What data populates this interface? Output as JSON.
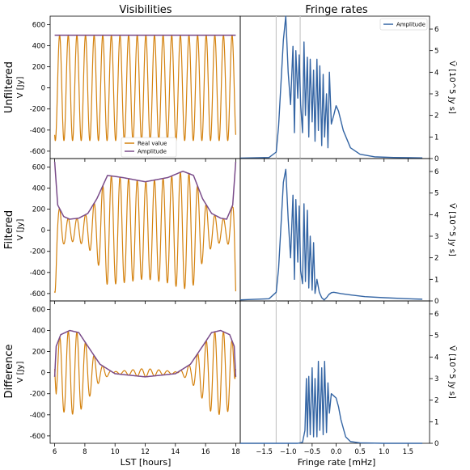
{
  "figure": {
    "col_titles": [
      "Visibilities",
      "Fringe rates"
    ],
    "row_labels": [
      "Unfiltered",
      "Filtered",
      "Difference"
    ],
    "colors": {
      "real": "#d4820f",
      "amplitude": "#7a4c8a",
      "fringe": "#3465a4",
      "vline": "#c8c8c8"
    }
  },
  "chart_data": [
    {
      "type": "line",
      "panel": "visibilities",
      "title": "Visibilities",
      "xlabel": "LST [hours]",
      "ylabel": "V [Jy]",
      "xlim": [
        5.7,
        18.3
      ],
      "ylim": [
        -670,
        680
      ],
      "xticks": [
        6,
        8,
        10,
        12,
        14,
        16,
        18
      ],
      "yticks": [
        -600,
        -400,
        -200,
        0,
        200,
        400,
        600
      ],
      "legend": {
        "entries": [
          "Real value",
          "Amplitude"
        ],
        "location": "lower center (top row)"
      },
      "rows": [
        {
          "name": "Unfiltered",
          "amplitude": {
            "x": [
              6,
              18
            ],
            "y": [
              500,
              500
            ]
          },
          "real": {
            "amp": 500,
            "cycles_per_hour": 1.75
          }
        },
        {
          "name": "Filtered",
          "amplitude": {
            "x": [
              6,
              6.2,
              6.6,
              7.0,
              7.6,
              8.2,
              8.8,
              9.5,
              10.5,
              12,
              13.5,
              14.5,
              15.2,
              15.8,
              16.4,
              17.0,
              17.4,
              17.8,
              18
            ],
            "y": [
              650,
              240,
              130,
              105,
              115,
              160,
              300,
              520,
              500,
              460,
              500,
              560,
              520,
              300,
              160,
              115,
              105,
              240,
              650
            ]
          },
          "real": {
            "cycles_per_hour": 1.75
          }
        },
        {
          "name": "Difference",
          "amplitude": {
            "x": [
              6,
              6.1,
              6.4,
              7.0,
              7.6,
              8.2,
              9.0,
              10.0,
              12.0,
              14.0,
              15.0,
              15.8,
              16.4,
              17.0,
              17.6,
              17.9,
              18
            ],
            "y": [
              -40,
              250,
              360,
              400,
              380,
              250,
              80,
              -10,
              -40,
              -10,
              80,
              250,
              380,
              400,
              360,
              250,
              -40
            ]
          },
          "real": {
            "cycles_per_hour": 1.75
          }
        }
      ]
    },
    {
      "type": "line",
      "panel": "fringe_rates",
      "title": "Fringe rates",
      "xlabel": "Fringe rate [mHz]",
      "ylabel": "Ṽ [10^5 Jy s]",
      "xlim": [
        -2.0,
        1.95
      ],
      "ylim": [
        0,
        6.6
      ],
      "xticks": [
        -1.5,
        -1.0,
        -0.5,
        0.0,
        0.5,
        1.0,
        1.5
      ],
      "xtick_labels": [
        "−1.5",
        "−1.0",
        "−0.5",
        "0.0",
        "0.5",
        "1.0",
        "1.5"
      ],
      "yticks": [
        0,
        1,
        2,
        3,
        4,
        5,
        6
      ],
      "vlines": [
        -1.25,
        -0.75
      ],
      "legend": {
        "entries": [
          "Amplitude"
        ],
        "location": "upper right (top row)"
      },
      "rows": [
        {
          "name": "Unfiltered",
          "x": [
            -2.0,
            -1.4,
            -1.25,
            -1.2,
            -1.15,
            -1.1,
            -1.05,
            -1.0,
            -0.95,
            -0.9,
            -0.87,
            -0.84,
            -0.8,
            -0.77,
            -0.74,
            -0.7,
            -0.67,
            -0.64,
            -0.6,
            -0.57,
            -0.54,
            -0.5,
            -0.47,
            -0.44,
            -0.4,
            -0.37,
            -0.34,
            -0.3,
            -0.27,
            -0.24,
            -0.2,
            -0.17,
            -0.14,
            -0.1,
            -0.05,
            0.0,
            0.05,
            0.15,
            0.3,
            0.5,
            0.8,
            1.2,
            1.8
          ],
          "y": [
            0.02,
            0.05,
            0.3,
            1.5,
            3.5,
            5.5,
            6.6,
            4.0,
            2.5,
            5.2,
            1.2,
            5.0,
            2.8,
            4.8,
            2.5,
            1.2,
            5.4,
            2.0,
            4.7,
            1.0,
            4.6,
            1.7,
            4.1,
            0.8,
            4.6,
            1.3,
            4.3,
            0.6,
            3.9,
            1.0,
            3.0,
            0.5,
            4.0,
            1.6,
            2.0,
            2.45,
            2.2,
            1.3,
            0.5,
            0.2,
            0.08,
            0.05,
            0.03
          ]
        },
        {
          "name": "Filtered",
          "x": [
            -2.0,
            -1.4,
            -1.25,
            -1.2,
            -1.15,
            -1.1,
            -1.05,
            -1.0,
            -0.95,
            -0.9,
            -0.87,
            -0.84,
            -0.8,
            -0.77,
            -0.74,
            -0.7,
            -0.67,
            -0.64,
            -0.6,
            -0.57,
            -0.54,
            -0.5,
            -0.47,
            -0.44,
            -0.4,
            -0.35,
            -0.3,
            -0.25,
            -0.2,
            -0.15,
            -0.1,
            -0.05,
            0.0,
            0.1,
            0.3,
            0.6,
            1.0,
            1.5,
            1.8
          ],
          "y": [
            0.05,
            0.1,
            0.4,
            1.5,
            3.5,
            5.5,
            6.1,
            3.8,
            2.0,
            4.9,
            1.0,
            4.7,
            1.8,
            4.4,
            1.4,
            0.8,
            4.5,
            0.9,
            4.2,
            0.6,
            3.0,
            0.5,
            2.7,
            0.35,
            1.0,
            0.4,
            0.15,
            0.05,
            0.15,
            0.3,
            0.38,
            0.4,
            0.38,
            0.34,
            0.28,
            0.2,
            0.15,
            0.1,
            0.08
          ]
        },
        {
          "name": "Difference",
          "x": [
            -2.0,
            -0.8,
            -0.7,
            -0.65,
            -0.62,
            -0.6,
            -0.57,
            -0.54,
            -0.5,
            -0.47,
            -0.44,
            -0.4,
            -0.37,
            -0.34,
            -0.3,
            -0.27,
            -0.24,
            -0.2,
            -0.17,
            -0.14,
            -0.1,
            -0.05,
            0.0,
            0.05,
            0.1,
            0.2,
            0.3,
            0.5,
            1.0,
            1.8
          ],
          "y": [
            0.0,
            0.0,
            0.05,
            0.6,
            3.0,
            0.3,
            3.1,
            0.4,
            3.5,
            0.3,
            3.0,
            0.3,
            3.8,
            0.6,
            3.5,
            0.4,
            3.8,
            0.5,
            2.8,
            1.4,
            2.3,
            2.2,
            2.1,
            1.7,
            1.1,
            0.3,
            0.08,
            0.02,
            0.0,
            0.0
          ]
        }
      ]
    }
  ]
}
